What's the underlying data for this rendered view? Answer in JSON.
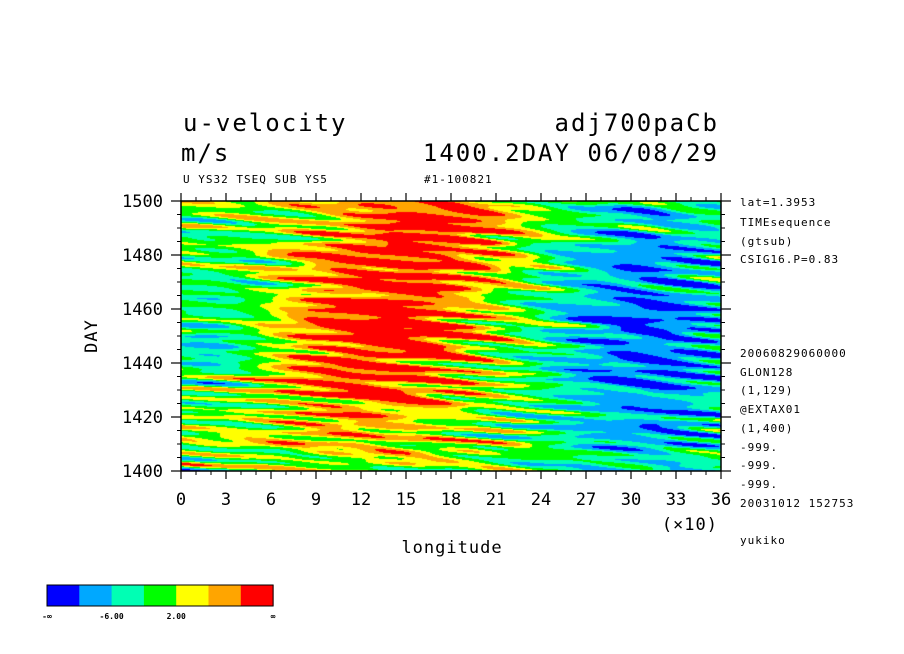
{
  "header": {
    "title_left": "u-velocity",
    "title_right": "adj700paCb",
    "units": "m/s",
    "time_label": "1400.2DAY 06/08/29",
    "sub_left": "U YS32 TSEQ SUB YS5",
    "sub_right": "#1-100821"
  },
  "side_info": [
    "lat=1.3953",
    "TIMEsequence",
    "(gtsub)",
    "CSIG16.P=0.83",
    "20060829060000",
    "GLON128",
    "(1,129)",
    "@EXTAX01",
    "(1,400)",
    "-999.",
    "-999.",
    "-999.",
    "20031012 152753",
    "yukiko"
  ],
  "chart_data": {
    "type": "heatmap",
    "xlabel": "longitude",
    "x_scale_note": "(×10)",
    "ylabel": "DAY",
    "xlim": [
      0,
      36
    ],
    "ylim": [
      1400,
      1500
    ],
    "x_ticks": [
      "0",
      "3",
      "6",
      "9",
      "12",
      "15",
      "18",
      "21",
      "24",
      "27",
      "30",
      "33",
      "36"
    ],
    "y_ticks": [
      "1400",
      "1420",
      "1440",
      "1460",
      "1480",
      "1500"
    ],
    "colorbar": {
      "colors": [
        "#0000ff",
        "#00a8ff",
        "#00ffb4",
        "#00ff00",
        "#ffff00",
        "#ffa500",
        "#ff0000"
      ],
      "labels": [
        "-∞",
        "-6.00",
        "2.00",
        "∞"
      ]
    },
    "pattern_description": "westward-propagating streaks; strong positive (red) core near longitude 90-210 during days 1420-1490, negative (blue) streaks east of longitude 240"
  },
  "colors": {
    "blue": "#0000ff",
    "lightblue": "#00a8ff",
    "cyan": "#00ffb4",
    "green": "#00ff00",
    "yellow": "#ffff00",
    "orange": "#ffa500",
    "red": "#ff0000"
  }
}
